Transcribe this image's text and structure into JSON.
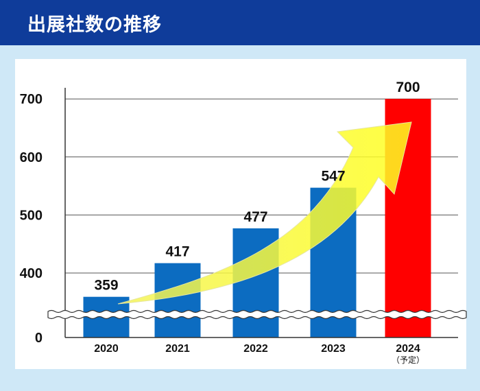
{
  "header": {
    "title": "出展社数の推移"
  },
  "chart_data": {
    "type": "bar",
    "title": "出展社数の推移",
    "categories": [
      "2020",
      "2021",
      "2022",
      "2023",
      "2024"
    ],
    "category_notes": [
      "",
      "",
      "",
      "",
      "（予定）"
    ],
    "values": [
      359,
      417,
      477,
      547,
      700
    ],
    "value_labels": [
      "359",
      "417",
      "477",
      "547",
      "700"
    ],
    "bar_colors": [
      "#0c6cc1",
      "#0c6cc1",
      "#0c6cc1",
      "#0c6cc1",
      "#ff0000"
    ],
    "y_ticks": [
      0,
      400,
      500,
      600,
      700
    ],
    "y_tick_labels": [
      "0",
      "400",
      "500",
      "600",
      "700"
    ],
    "y_axis_break": true,
    "ylim": [
      300,
      700
    ],
    "grid": true,
    "arrow_color": "#ffff00"
  }
}
